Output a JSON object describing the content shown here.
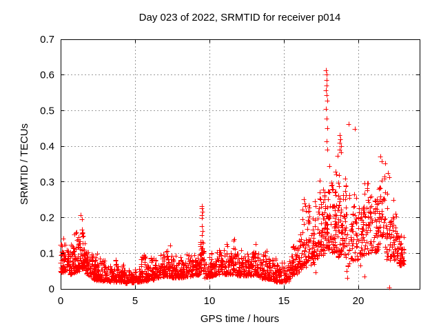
{
  "chart_data": {
    "type": "scatter",
    "title": "Day 023 of 2022, SRMTID for receiver p014",
    "xlabel": "GPS time / hours",
    "ylabel": "SRMTID / TECUs",
    "xlim": [
      0,
      24.12
    ],
    "ylim": [
      0,
      0.7
    ],
    "xticks": [
      0,
      5,
      10,
      15,
      20
    ],
    "xtick_labels": [
      "0",
      "5",
      "10",
      "15",
      "20"
    ],
    "yticks": [
      0,
      0.1,
      0.2,
      0.3,
      0.4,
      0.5,
      0.6,
      0.7
    ],
    "ytick_labels": [
      "0",
      "0.1",
      "0.2",
      "0.3",
      "0.4",
      "0.5",
      "0.6",
      "0.7"
    ],
    "grid": true,
    "legend": "none",
    "marker": "plus",
    "marker_color": "#ff0000",
    "grid_color": "#999999",
    "axis_color": "#000000",
    "background_color": "#ffffff",
    "seed": 20220123,
    "envelope_segments": [
      [
        0.0,
        0.6,
        0.045,
        0.18,
        0.05,
        0.155,
        70,
        1.5
      ],
      [
        0.6,
        1.25,
        0.04,
        0.155,
        0.05,
        0.18,
        75,
        1.5
      ],
      [
        1.25,
        1.75,
        0.06,
        0.205,
        0.05,
        0.18,
        60,
        1.4
      ],
      [
        1.75,
        2.2,
        0.04,
        0.15,
        0.03,
        0.12,
        50,
        1.6
      ],
      [
        2.2,
        3.2,
        0.025,
        0.11,
        0.02,
        0.095,
        100,
        1.8
      ],
      [
        3.2,
        4.3,
        0.02,
        0.09,
        0.018,
        0.075,
        110,
        1.8
      ],
      [
        4.3,
        5.4,
        0.015,
        0.06,
        0.02,
        0.065,
        100,
        1.8
      ],
      [
        5.4,
        6.3,
        0.02,
        0.115,
        0.025,
        0.09,
        90,
        1.8
      ],
      [
        6.3,
        7.05,
        0.03,
        0.095,
        0.035,
        0.11,
        75,
        1.8
      ],
      [
        7.05,
        7.7,
        0.035,
        0.155,
        0.03,
        0.115,
        65,
        1.7
      ],
      [
        7.7,
        9.35,
        0.028,
        0.1,
        0.04,
        0.105,
        155,
        1.8
      ],
      [
        9.35,
        9.65,
        0.05,
        0.19,
        0.05,
        0.16,
        35,
        1.2
      ],
      [
        9.65,
        10.6,
        0.03,
        0.1,
        0.04,
        0.12,
        88,
        1.8
      ],
      [
        10.6,
        11.45,
        0.04,
        0.13,
        0.04,
        0.145,
        82,
        1.7
      ],
      [
        11.45,
        12.35,
        0.04,
        0.155,
        0.035,
        0.12,
        88,
        1.7
      ],
      [
        12.35,
        13.25,
        0.035,
        0.11,
        0.04,
        0.135,
        88,
        1.7
      ],
      [
        13.25,
        14.35,
        0.03,
        0.13,
        0.025,
        0.1,
        105,
        1.8
      ],
      [
        14.35,
        15.35,
        0.02,
        0.09,
        0.02,
        0.08,
        90,
        1.8
      ],
      [
        15.35,
        16.15,
        0.03,
        0.125,
        0.05,
        0.165,
        78,
        1.6
      ],
      [
        16.15,
        17.05,
        0.05,
        0.25,
        0.07,
        0.285,
        85,
        1.3
      ],
      [
        17.05,
        17.85,
        0.08,
        0.305,
        0.1,
        0.34,
        80,
        1.2
      ],
      [
        17.85,
        18.55,
        0.1,
        0.35,
        0.1,
        0.37,
        85,
        1.1
      ],
      [
        18.55,
        19.2,
        0.09,
        0.365,
        0.08,
        0.33,
        80,
        1.2
      ],
      [
        19.2,
        20.05,
        0.06,
        0.3,
        0.08,
        0.3,
        68,
        1.3
      ],
      [
        20.05,
        21.05,
        0.09,
        0.31,
        0.1,
        0.33,
        85,
        1.2
      ],
      [
        21.05,
        21.85,
        0.1,
        0.33,
        0.12,
        0.365,
        75,
        1.2
      ],
      [
        21.85,
        22.65,
        0.08,
        0.315,
        0.08,
        0.235,
        75,
        1.4
      ],
      [
        22.65,
        23.1,
        0.06,
        0.2,
        0.07,
        0.16,
        45,
        1.5
      ]
    ],
    "outliers": [
      [
        1.35,
        0.207
      ],
      [
        1.44,
        0.196
      ],
      [
        9.47,
        0.233
      ],
      [
        9.5,
        0.226
      ],
      [
        9.52,
        0.217
      ],
      [
        9.49,
        0.207
      ],
      [
        9.51,
        0.2
      ],
      [
        9.5,
        0.176
      ],
      [
        9.53,
        0.163
      ],
      [
        9.47,
        0.15
      ],
      [
        9.5,
        0.131
      ],
      [
        16.33,
        0.252
      ],
      [
        16.4,
        0.24
      ],
      [
        17.84,
        0.613
      ],
      [
        17.86,
        0.602
      ],
      [
        17.85,
        0.585
      ],
      [
        17.87,
        0.571
      ],
      [
        17.84,
        0.557
      ],
      [
        17.86,
        0.544
      ],
      [
        17.9,
        0.527
      ],
      [
        17.84,
        0.504
      ],
      [
        17.88,
        0.477
      ],
      [
        17.92,
        0.45
      ],
      [
        17.86,
        0.414
      ],
      [
        17.9,
        0.39
      ],
      [
        18.6,
        0.374
      ],
      [
        18.73,
        0.431
      ],
      [
        18.79,
        0.42
      ],
      [
        18.75,
        0.409
      ],
      [
        18.83,
        0.4
      ],
      [
        18.77,
        0.391
      ],
      [
        18.86,
        0.382
      ],
      [
        19.33,
        0.462
      ],
      [
        19.78,
        0.448
      ],
      [
        21.5,
        0.371
      ],
      [
        21.56,
        0.358
      ],
      [
        22.0,
        0.324
      ],
      [
        22.07,
        0.313
      ],
      [
        17.12,
        0.046
      ],
      [
        19.22,
        0.05
      ],
      [
        19.26,
        0.031
      ],
      [
        20.12,
        0.066
      ],
      [
        20.4,
        0.034
      ],
      [
        22.08,
        0.003
      ]
    ]
  }
}
